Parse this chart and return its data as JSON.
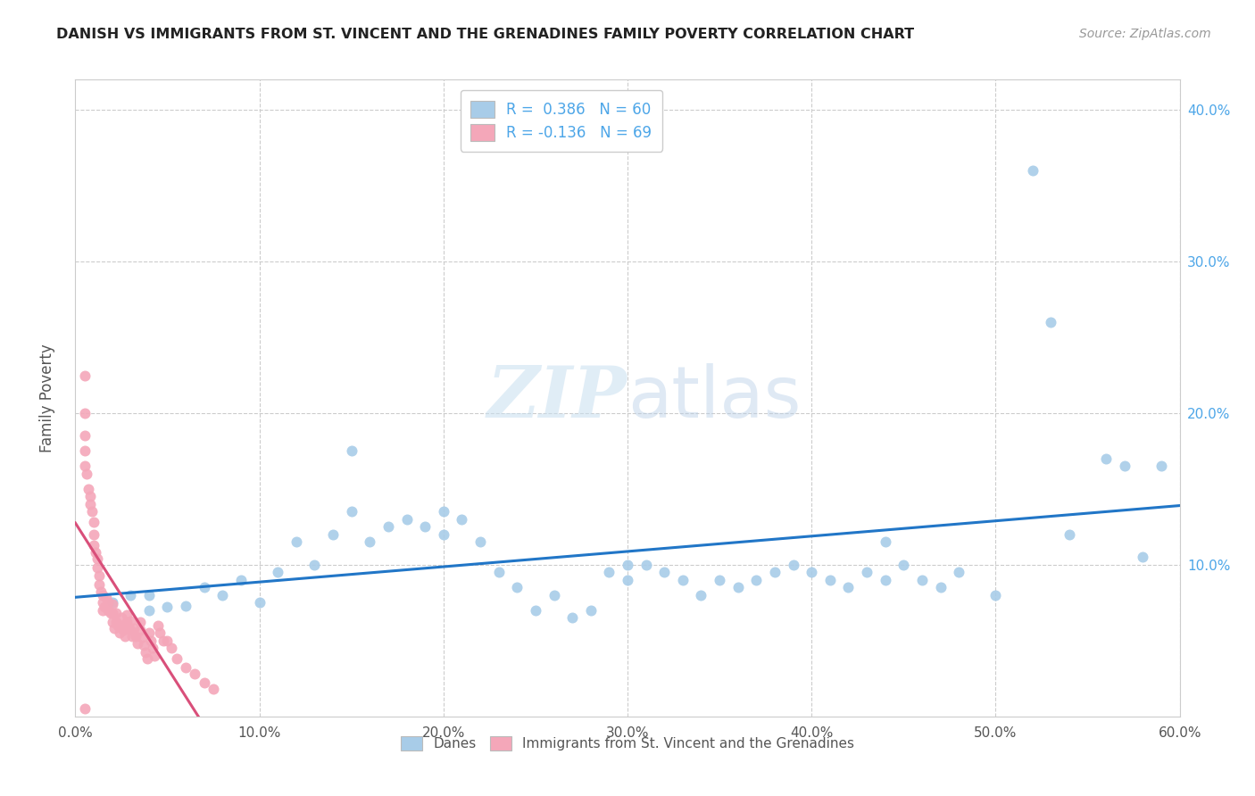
{
  "title": "DANISH VS IMMIGRANTS FROM ST. VINCENT AND THE GRENADINES FAMILY POVERTY CORRELATION CHART",
  "source": "Source: ZipAtlas.com",
  "ylabel": "Family Poverty",
  "xlim": [
    0.0,
    0.6
  ],
  "ylim": [
    0.0,
    0.42
  ],
  "xticks": [
    0.0,
    0.1,
    0.2,
    0.3,
    0.4,
    0.5,
    0.6
  ],
  "xtick_labels": [
    "0.0%",
    "10.0%",
    "20.0%",
    "30.0%",
    "40.0%",
    "50.0%",
    "60.0%"
  ],
  "yticks": [
    0.0,
    0.1,
    0.2,
    0.3,
    0.4
  ],
  "ytick_labels": [
    "",
    "10.0%",
    "20.0%",
    "30.0%",
    "40.0%"
  ],
  "blue_color": "#a8cce8",
  "pink_color": "#f4a7b9",
  "blue_line_color": "#2176c7",
  "pink_line_color": "#d94f7a",
  "pink_dash_color": "#e8a0ba",
  "R_blue": "0.386",
  "N_blue": "60",
  "R_pink": "-0.136",
  "N_pink": "69",
  "watermark_zip": "ZIP",
  "watermark_atlas": "atlas",
  "legend_label_blue": "Danes",
  "legend_label_pink": "Immigrants from St. Vincent and the Grenadines",
  "blue_x": [
    0.02,
    0.03,
    0.04,
    0.04,
    0.05,
    0.06,
    0.07,
    0.08,
    0.09,
    0.1,
    0.11,
    0.12,
    0.13,
    0.14,
    0.15,
    0.15,
    0.16,
    0.17,
    0.18,
    0.19,
    0.2,
    0.2,
    0.21,
    0.22,
    0.23,
    0.24,
    0.25,
    0.26,
    0.27,
    0.28,
    0.29,
    0.3,
    0.3,
    0.31,
    0.32,
    0.33,
    0.34,
    0.35,
    0.36,
    0.37,
    0.38,
    0.39,
    0.4,
    0.41,
    0.42,
    0.43,
    0.44,
    0.45,
    0.46,
    0.47,
    0.48,
    0.5,
    0.52,
    0.54,
    0.56,
    0.57,
    0.58,
    0.59,
    0.53,
    0.44
  ],
  "blue_y": [
    0.075,
    0.08,
    0.07,
    0.08,
    0.072,
    0.073,
    0.085,
    0.08,
    0.09,
    0.075,
    0.095,
    0.115,
    0.1,
    0.12,
    0.135,
    0.175,
    0.115,
    0.125,
    0.13,
    0.125,
    0.135,
    0.12,
    0.13,
    0.115,
    0.095,
    0.085,
    0.07,
    0.08,
    0.065,
    0.07,
    0.095,
    0.09,
    0.1,
    0.1,
    0.095,
    0.09,
    0.08,
    0.09,
    0.085,
    0.09,
    0.095,
    0.1,
    0.095,
    0.09,
    0.085,
    0.095,
    0.09,
    0.1,
    0.09,
    0.085,
    0.095,
    0.08,
    0.36,
    0.12,
    0.17,
    0.165,
    0.105,
    0.165,
    0.26,
    0.115
  ],
  "pink_x": [
    0.005,
    0.005,
    0.005,
    0.005,
    0.005,
    0.006,
    0.007,
    0.008,
    0.008,
    0.009,
    0.01,
    0.01,
    0.01,
    0.011,
    0.012,
    0.012,
    0.013,
    0.013,
    0.014,
    0.015,
    0.015,
    0.015,
    0.016,
    0.017,
    0.018,
    0.018,
    0.019,
    0.02,
    0.02,
    0.02,
    0.021,
    0.022,
    0.022,
    0.023,
    0.024,
    0.025,
    0.025,
    0.026,
    0.027,
    0.028,
    0.028,
    0.029,
    0.03,
    0.03,
    0.031,
    0.032,
    0.033,
    0.034,
    0.035,
    0.035,
    0.036,
    0.037,
    0.038,
    0.039,
    0.04,
    0.041,
    0.042,
    0.043,
    0.045,
    0.046,
    0.048,
    0.05,
    0.052,
    0.055,
    0.06,
    0.065,
    0.07,
    0.075,
    0.005
  ],
  "pink_y": [
    0.225,
    0.2,
    0.185,
    0.175,
    0.165,
    0.16,
    0.15,
    0.145,
    0.14,
    0.135,
    0.128,
    0.12,
    0.113,
    0.108,
    0.104,
    0.098,
    0.093,
    0.087,
    0.082,
    0.08,
    0.075,
    0.07,
    0.072,
    0.078,
    0.075,
    0.07,
    0.068,
    0.074,
    0.068,
    0.062,
    0.058,
    0.068,
    0.062,
    0.06,
    0.055,
    0.065,
    0.06,
    0.057,
    0.053,
    0.067,
    0.062,
    0.058,
    0.063,
    0.057,
    0.053,
    0.058,
    0.053,
    0.048,
    0.062,
    0.057,
    0.052,
    0.047,
    0.042,
    0.038,
    0.055,
    0.05,
    0.045,
    0.04,
    0.06,
    0.055,
    0.05,
    0.05,
    0.045,
    0.038,
    0.032,
    0.028,
    0.022,
    0.018,
    0.005
  ]
}
